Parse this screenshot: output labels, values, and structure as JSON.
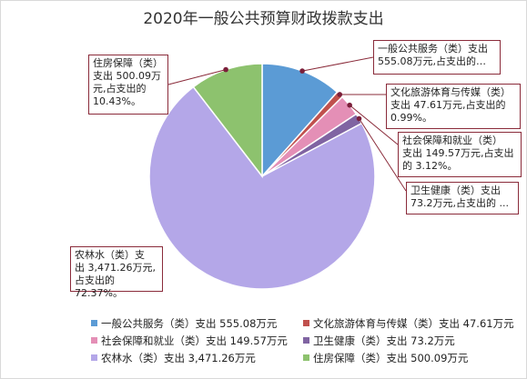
{
  "chart_data": {
    "type": "pie",
    "title": "2020年一般公共预算财政拨款支出",
    "slices": [
      {
        "name": "一般公共服务（类）支出",
        "value": 555.08,
        "color": "#5B9BD5",
        "legend": "一般公共服务（类）支出 555.08万元",
        "label": "一般公共服务（类）支出\n555.08万元,占支出的…"
      },
      {
        "name": "文化旅游体育与传媒（类）支出",
        "value": 47.61,
        "color": "#C0504D",
        "legend": "文化旅游体育与传媒（类）支出 47.61万元",
        "label": "文化旅游体育与传媒（类）\n支出 47.61万元,占支出的\n0.99%。"
      },
      {
        "name": "社会保障和就业（类）支出",
        "value": 149.57,
        "color": "#E48FB6",
        "legend": "社会保障和就业（类）支出 149.57万元",
        "label": "社会保障和就业（类）\n支出 149.57万元,占支出\n的 3.12%。"
      },
      {
        "name": "卫生健康（类）支出",
        "value": 73.2,
        "color": "#8064A2",
        "legend": "卫生健康（类）支出 73.2万元",
        "label": "卫生健康（类）支出\n73.2万元,占支出的 ..."
      },
      {
        "name": "农林水（类）支出",
        "value": 3471.26,
        "color": "#B4A7E8",
        "legend": "农林水（类）支出 3,471.26万元",
        "label": "农林水（类）支\n出 3,471.26万元,\n占支出的72.37%。"
      },
      {
        "name": "住房保障（类）支出",
        "value": 500.09,
        "color": "#8DC26E",
        "legend": "住房保障（类）支出 500.09万元",
        "label": "住房保障（类）\n支出 500.09万\n元,占支出的\n10.43%。"
      }
    ],
    "legend_position": "bottom"
  }
}
